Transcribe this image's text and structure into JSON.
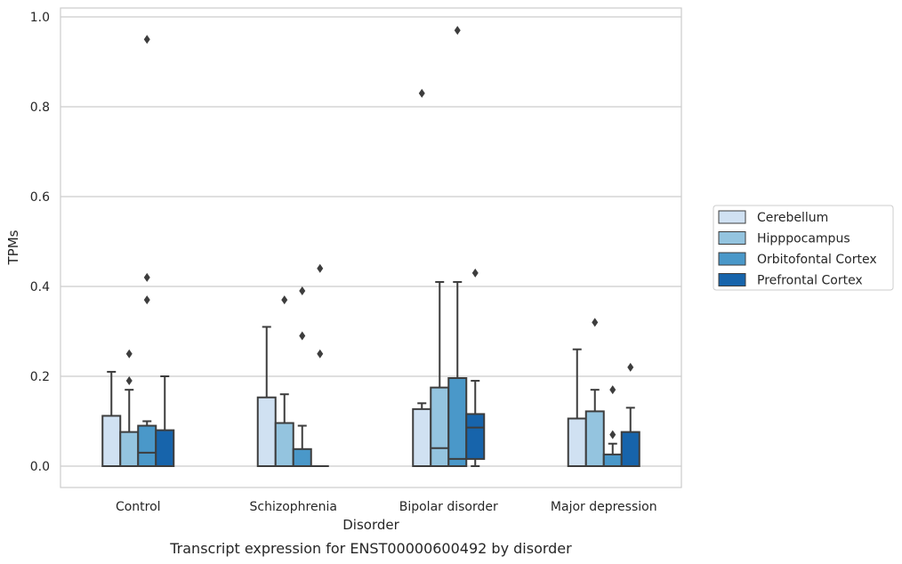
{
  "chart_data": {
    "type": "box",
    "xlabel": "Disorder",
    "ylabel": "TPMs",
    "caption": "Transcript expression for ENST00000600492 by disorder",
    "ylim": [
      -0.048,
      1.02
    ],
    "yticks": [
      "0.0",
      "0.2",
      "0.4",
      "0.6",
      "0.8",
      "1.0"
    ],
    "grid": "horizontal",
    "legend_position": "right",
    "categories": [
      "Control",
      "Schizophrenia",
      "Bipolar disorder",
      "Major depression"
    ],
    "series": [
      {
        "name": "Cerebellum",
        "color": "#d0e1f2",
        "boxes": [
          {
            "whislo": 0.0,
            "q1": 0.0,
            "med": 0.0,
            "q3": 0.112,
            "whishi": 0.21,
            "fliers": []
          },
          {
            "whislo": 0.0,
            "q1": 0.0,
            "med": 0.0,
            "q3": 0.153,
            "whishi": 0.31,
            "fliers": []
          },
          {
            "whislo": 0.0,
            "q1": 0.0,
            "med": 0.0,
            "q3": 0.127,
            "whishi": 0.14,
            "fliers": [
              0.83
            ]
          },
          {
            "whislo": 0.0,
            "q1": 0.0,
            "med": 0.0,
            "q3": 0.106,
            "whishi": 0.26,
            "fliers": []
          }
        ]
      },
      {
        "name": "Hipppocampus",
        "color": "#94c4df",
        "boxes": [
          {
            "whislo": 0.0,
            "q1": 0.0,
            "med": 0.0,
            "q3": 0.076,
            "whishi": 0.17,
            "fliers": [
              0.19,
              0.25
            ]
          },
          {
            "whislo": 0.0,
            "q1": 0.0,
            "med": 0.0,
            "q3": 0.096,
            "whishi": 0.16,
            "fliers": [
              0.37
            ]
          },
          {
            "whislo": 0.0,
            "q1": 0.0,
            "med": 0.04,
            "q3": 0.175,
            "whishi": 0.41,
            "fliers": []
          },
          {
            "whislo": 0.0,
            "q1": 0.0,
            "med": 0.0,
            "q3": 0.122,
            "whishi": 0.17,
            "fliers": [
              0.32
            ]
          }
        ]
      },
      {
        "name": "Orbitofontal Cortex",
        "color": "#4a98c9",
        "boxes": [
          {
            "whislo": 0.0,
            "q1": 0.0,
            "med": 0.03,
            "q3": 0.09,
            "whishi": 0.1,
            "fliers": [
              0.37,
              0.42,
              0.95
            ]
          },
          {
            "whislo": 0.0,
            "q1": 0.0,
            "med": 0.0,
            "q3": 0.038,
            "whishi": 0.09,
            "fliers": [
              0.29,
              0.39
            ]
          },
          {
            "whislo": 0.0,
            "q1": 0.0,
            "med": 0.016,
            "q3": 0.196,
            "whishi": 0.41,
            "fliers": [
              0.97
            ]
          },
          {
            "whislo": 0.0,
            "q1": 0.0,
            "med": 0.0,
            "q3": 0.026,
            "whishi": 0.05,
            "fliers": [
              0.07,
              0.17
            ]
          }
        ]
      },
      {
        "name": "Prefrontal Cortex",
        "color": "#1764ab",
        "boxes": [
          {
            "whislo": 0.0,
            "q1": 0.0,
            "med": 0.0,
            "q3": 0.08,
            "whishi": 0.2,
            "fliers": []
          },
          {
            "whislo": 0.0,
            "q1": 0.0,
            "med": 0.0,
            "q3": 0.0,
            "whishi": 0.0,
            "fliers": [
              0.25,
              0.44
            ]
          },
          {
            "whislo": 0.0,
            "q1": 0.016,
            "med": 0.086,
            "q3": 0.116,
            "whishi": 0.19,
            "fliers": [
              0.43
            ]
          },
          {
            "whislo": 0.0,
            "q1": 0.0,
            "med": 0.0,
            "q3": 0.076,
            "whishi": 0.13,
            "fliers": [
              0.22
            ]
          }
        ]
      }
    ]
  }
}
